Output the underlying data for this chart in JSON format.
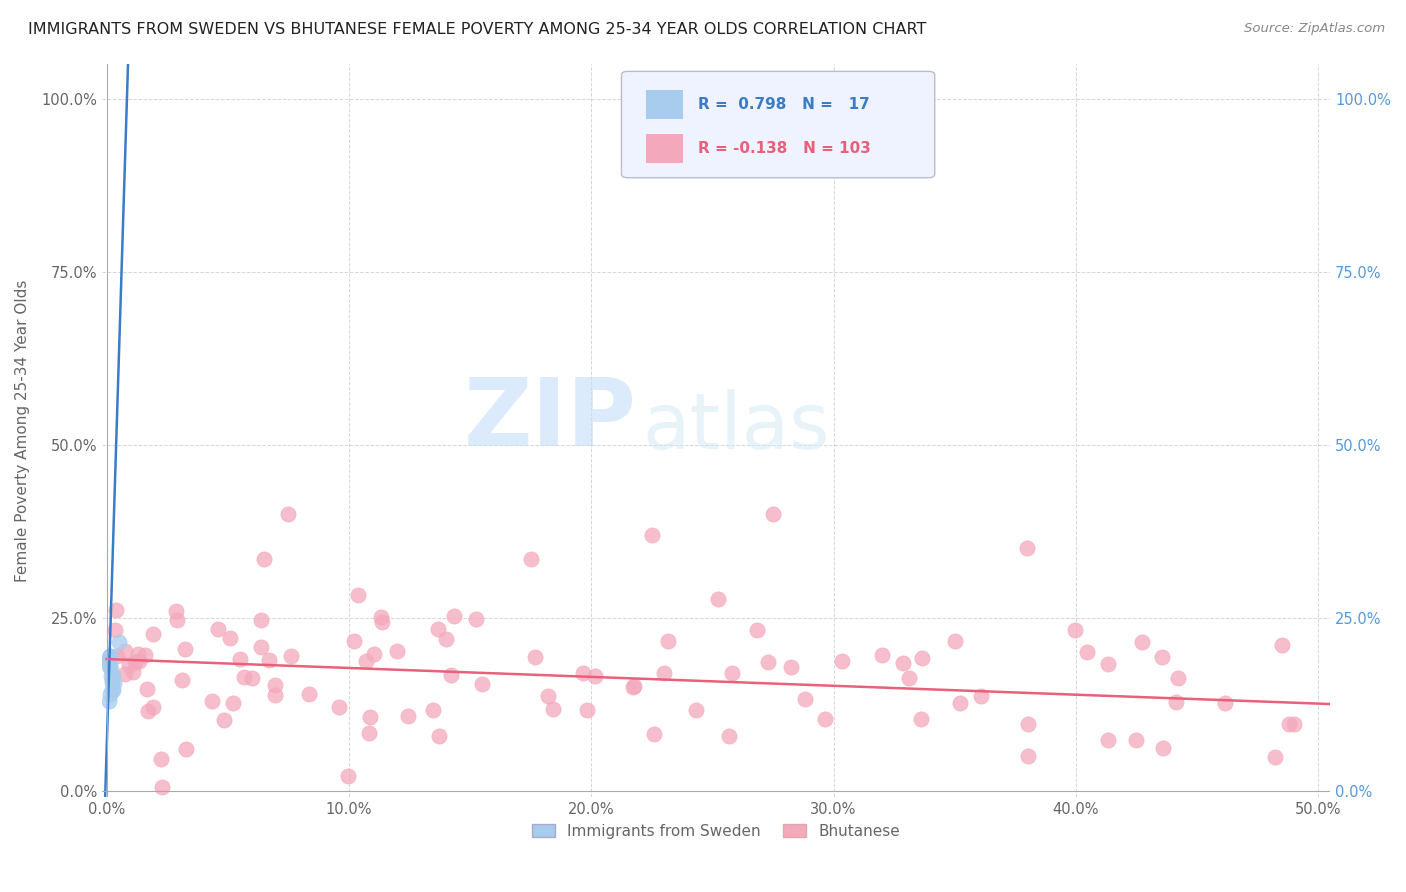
{
  "title": "IMMIGRANTS FROM SWEDEN VS BHUTANESE FEMALE POVERTY AMONG 25-34 YEAR OLDS CORRELATION CHART",
  "source": "Source: ZipAtlas.com",
  "ylabel": "Female Poverty Among 25-34 Year Olds",
  "xlim": [
    -0.002,
    0.505
  ],
  "ylim": [
    -0.01,
    1.05
  ],
  "xtick_vals": [
    0.0,
    0.1,
    0.2,
    0.3,
    0.4,
    0.5
  ],
  "xtick_labels": [
    "0.0%",
    "10.0%",
    "20.0%",
    "30.0%",
    "40.0%",
    "50.0%"
  ],
  "ytick_vals": [
    0.0,
    0.25,
    0.5,
    0.75,
    1.0
  ],
  "ytick_labels": [
    "0.0%",
    "25.0%",
    "50.0%",
    "75.0%",
    "100.0%"
  ],
  "sweden_color": "#A8CCEE",
  "bhutanese_color": "#F4A8BC",
  "sweden_line_color": "#3A7CC8",
  "bhutanese_line_color": "#E8607A",
  "sweden_R": 0.798,
  "sweden_N": 17,
  "bhutanese_R": -0.138,
  "bhutanese_N": 103,
  "watermark_color": "#D8ECFA",
  "background_color": "#FFFFFF",
  "grid_color": "#CCCCCC",
  "right_axis_color": "#5599DD",
  "title_color": "#222222",
  "source_color": "#888888",
  "label_color": "#666666"
}
